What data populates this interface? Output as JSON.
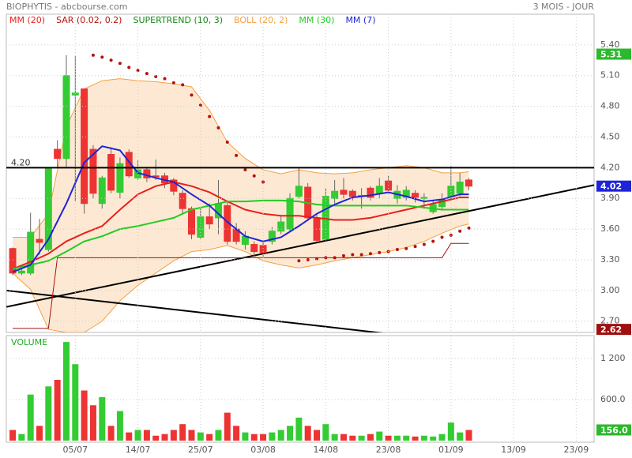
{
  "header": {
    "title": "BIOPHYTIS - abcbourse.com",
    "period": "3 MOIS - JOUR"
  },
  "chart_data": [
    {
      "type": "candlestick",
      "up_color": "#33cc33",
      "down_color": "#ee3333",
      "open": [
        3.41,
        3.17,
        3.17,
        3.5,
        3.4,
        4.38,
        4.29,
        4.91,
        4.97,
        4.38,
        3.85,
        4.33,
        3.96,
        4.35,
        4.1,
        4.18,
        4.12,
        4.12,
        4.08,
        3.95,
        3.8,
        3.52,
        3.72,
        3.71,
        3.83,
        3.6,
        3.45,
        3.45,
        3.44,
        3.48,
        3.58,
        3.6,
        3.92,
        4.01,
        3.71,
        3.5,
        3.9,
        3.98,
        3.97,
        3.93,
        4.0,
        3.95,
        4.07,
        3.9,
        3.91,
        3.95,
        3.9,
        3.77,
        3.82,
        3.92,
        3.95,
        4.08
      ],
      "high": [
        3.42,
        3.22,
        3.76,
        3.7,
        4.19,
        4.47,
        5.3,
        5.29,
        4.97,
        4.42,
        4.12,
        4.4,
        4.3,
        4.38,
        4.27,
        4.2,
        4.28,
        4.15,
        4.1,
        3.98,
        3.82,
        3.8,
        3.85,
        4.08,
        3.88,
        3.66,
        3.58,
        3.48,
        3.47,
        3.62,
        3.73,
        3.95,
        4.2,
        4.05,
        3.75,
        4.0,
        4.08,
        4.1,
        3.99,
        4.0,
        4.02,
        4.1,
        4.12,
        4.03,
        4.02,
        3.98,
        3.95,
        3.88,
        3.95,
        4.22,
        4.15,
        4.1
      ],
      "low": [
        3.15,
        3.15,
        3.15,
        3.35,
        3.38,
        4.2,
        4.2,
        3.87,
        3.75,
        3.9,
        3.8,
        3.95,
        3.9,
        4.1,
        4.08,
        4.06,
        4.08,
        4.0,
        3.93,
        3.75,
        3.5,
        3.5,
        3.6,
        3.55,
        3.45,
        3.45,
        3.4,
        3.33,
        3.33,
        3.45,
        3.55,
        3.57,
        3.9,
        3.68,
        3.47,
        3.48,
        3.85,
        3.9,
        3.88,
        3.8,
        3.88,
        3.9,
        3.95,
        3.85,
        3.88,
        3.86,
        3.8,
        3.75,
        3.78,
        3.88,
        3.92,
        3.98
      ],
      "close": [
        3.17,
        3.19,
        3.57,
        3.47,
        4.19,
        4.29,
        5.1,
        4.93,
        3.85,
        3.95,
        4.1,
        3.98,
        4.24,
        4.12,
        4.18,
        4.1,
        4.11,
        4.05,
        3.97,
        3.8,
        3.55,
        3.72,
        3.65,
        3.85,
        3.48,
        3.48,
        3.53,
        3.38,
        3.37,
        3.58,
        3.67,
        3.9,
        4.02,
        3.71,
        3.49,
        3.92,
        3.97,
        3.94,
        3.92,
        3.93,
        3.91,
        4.02,
        3.98,
        3.97,
        3.98,
        3.91,
        3.91,
        3.84,
        3.89,
        4.02,
        4.06,
        4.02
      ],
      "series": [
        {
          "name": "MM (20)",
          "color": "#e8201a",
          "style": "line",
          "x": [
            0,
            2,
            4,
            6,
            8,
            10,
            12,
            14,
            16,
            18,
            20,
            22,
            24,
            26,
            28,
            30,
            32,
            34,
            36,
            38,
            40,
            42,
            44,
            46,
            48,
            50,
            51
          ],
          "values": [
            3.21,
            3.28,
            3.36,
            3.48,
            3.56,
            3.63,
            3.79,
            3.94,
            4.02,
            4.06,
            4.02,
            3.96,
            3.87,
            3.79,
            3.75,
            3.73,
            3.73,
            3.71,
            3.69,
            3.69,
            3.71,
            3.75,
            3.79,
            3.83,
            3.87,
            3.91,
            3.91
          ]
        },
        {
          "name": "SAR (0.02, 0.2)",
          "color": "#b5120f",
          "style": "dots",
          "x": [
            9,
            10,
            11,
            12,
            13,
            14,
            15,
            16,
            17,
            18,
            19,
            20,
            21,
            22,
            23,
            24,
            25,
            26,
            27,
            28,
            32,
            33,
            34,
            35,
            36,
            37,
            38,
            39,
            40,
            41,
            42,
            43,
            44,
            45,
            46,
            47,
            48,
            49,
            50,
            51
          ],
          "values": [
            5.3,
            5.28,
            5.25,
            5.22,
            5.18,
            5.15,
            5.12,
            5.09,
            5.07,
            5.03,
            5.01,
            4.91,
            4.81,
            4.7,
            4.59,
            4.45,
            4.32,
            4.18,
            4.12,
            4.06,
            3.29,
            3.3,
            3.31,
            3.32,
            3.32,
            3.34,
            3.35,
            3.35,
            3.36,
            3.37,
            3.38,
            3.4,
            3.41,
            3.43,
            3.45,
            3.48,
            3.52,
            3.54,
            3.58,
            3.61
          ]
        },
        {
          "name": "SUPERTREND (10, 3)",
          "color": "#138a13",
          "line_color": "#a01010",
          "style": "line",
          "x": [
            0,
            4,
            5,
            48,
            49,
            51
          ],
          "values": [
            2.63,
            2.63,
            3.32,
            3.32,
            3.46,
            3.46
          ]
        },
        {
          "name": "BOLL (20, 2)",
          "color": "#f5a040",
          "fill": "#fde4c8",
          "style": "band",
          "x": [
            0,
            2,
            4,
            6,
            8,
            10,
            12,
            14,
            16,
            18,
            20,
            22,
            24,
            26,
            28,
            30,
            32,
            34,
            36,
            38,
            40,
            42,
            44,
            46,
            48,
            50,
            51
          ],
          "upper": [
            3.52,
            3.52,
            3.75,
            4.6,
            4.97,
            5.05,
            5.07,
            5.05,
            5.04,
            5.02,
            4.99,
            4.76,
            4.45,
            4.29,
            4.18,
            4.14,
            4.18,
            4.15,
            4.14,
            4.15,
            4.18,
            4.2,
            4.22,
            4.2,
            4.15,
            4.15,
            4.16
          ],
          "lower": [
            3.17,
            3.01,
            2.62,
            2.59,
            2.59,
            2.7,
            2.9,
            3.05,
            3.17,
            3.29,
            3.38,
            3.4,
            3.44,
            3.38,
            3.29,
            3.25,
            3.22,
            3.25,
            3.29,
            3.32,
            3.35,
            3.38,
            3.42,
            3.48,
            3.56,
            3.63,
            3.65
          ]
        },
        {
          "name": "MM (30)",
          "color": "#22cc22",
          "style": "line",
          "x": [
            0,
            2,
            4,
            6,
            8,
            10,
            12,
            14,
            16,
            18,
            20,
            22,
            24,
            26,
            28,
            30,
            32,
            34,
            36,
            38,
            40,
            42,
            44,
            46,
            48,
            50,
            51
          ],
          "values": [
            3.21,
            3.25,
            3.29,
            3.38,
            3.48,
            3.53,
            3.6,
            3.63,
            3.67,
            3.71,
            3.79,
            3.83,
            3.87,
            3.87,
            3.88,
            3.88,
            3.87,
            3.84,
            3.83,
            3.83,
            3.83,
            3.83,
            3.83,
            3.81,
            3.79,
            3.79,
            3.79
          ]
        },
        {
          "name": "MM (7)",
          "color": "#1f24d8",
          "style": "line",
          "x": [
            0,
            2,
            4,
            6,
            8,
            10,
            12,
            14,
            16,
            18,
            20,
            22,
            24,
            26,
            28,
            30,
            32,
            34,
            36,
            38,
            40,
            42,
            44,
            46,
            48,
            50,
            51
          ],
          "values": [
            3.18,
            3.25,
            3.5,
            3.85,
            4.25,
            4.41,
            4.37,
            4.15,
            4.1,
            4.06,
            3.94,
            3.83,
            3.67,
            3.53,
            3.48,
            3.52,
            3.63,
            3.75,
            3.84,
            3.91,
            3.93,
            3.96,
            3.92,
            3.87,
            3.89,
            3.94,
            3.94
          ]
        }
      ],
      "trendlines": [
        {
          "x": [
            -0.7,
            65
          ],
          "values": [
            2.84,
            4.03
          ]
        },
        {
          "x": [
            -0.7,
            42.7
          ],
          "values": [
            3.0,
            2.57
          ]
        }
      ],
      "hline": {
        "value": 4.2,
        "label": "4.20"
      },
      "price_tags": [
        {
          "value": 5.31,
          "color": "#2db82d"
        },
        {
          "value": 4.02,
          "color": "#1f24d8"
        },
        {
          "value": 2.62,
          "color": "#a01010"
        }
      ],
      "xlim": [
        -0.71,
        65
      ],
      "ylim": [
        2.59,
        5.7
      ],
      "yticks": [
        {
          "value": 2.7,
          "label": "2.70"
        },
        {
          "value": 3.0,
          "label": "3.00"
        },
        {
          "value": 3.3,
          "label": "3.30"
        },
        {
          "value": 3.6,
          "label": "3.60"
        },
        {
          "value": 3.9,
          "label": "3.90"
        },
        {
          "value": 4.2,
          "label": "4.20"
        },
        {
          "value": 4.5,
          "label": "4.50"
        },
        {
          "value": 4.8,
          "label": "4.80"
        },
        {
          "value": 5.1,
          "label": "5.10"
        },
        {
          "value": 5.4,
          "label": "5.40"
        }
      ],
      "grid": true
    },
    {
      "type": "bar",
      "title": "VOLUME",
      "values": [
        156,
        96,
        672,
        216,
        792,
        888,
        1440,
        1116,
        732,
        516,
        636,
        216,
        432,
        120,
        156,
        156,
        72,
        96,
        156,
        240,
        156,
        120,
        96,
        156,
        408,
        216,
        120,
        96,
        96,
        120,
        156,
        216,
        336,
        216,
        156,
        240,
        96,
        96,
        72,
        72,
        96,
        132,
        72,
        72,
        72,
        60,
        72,
        60,
        96,
        264,
        120,
        156
      ],
      "last_tag": {
        "value": 156,
        "label": "156.0"
      },
      "xlim": [
        -0.71,
        65
      ],
      "ylim": [
        0,
        1476
      ],
      "yticks": [
        {
          "value": 600,
          "label": "600.0"
        },
        {
          "value": 1200,
          "label": "1 200"
        }
      ],
      "xticks": [
        {
          "value": 7,
          "label": "05/07"
        },
        {
          "value": 14,
          "label": "14/07"
        },
        {
          "value": 21,
          "label": "25/07"
        },
        {
          "value": 28,
          "label": "03/08"
        },
        {
          "value": 35,
          "label": "14/08"
        },
        {
          "value": 42,
          "label": "23/08"
        },
        {
          "value": 49,
          "label": "01/09"
        },
        {
          "value": 56,
          "label": "13/09"
        },
        {
          "value": 63,
          "label": "23/09"
        }
      ],
      "grid": true
    }
  ]
}
